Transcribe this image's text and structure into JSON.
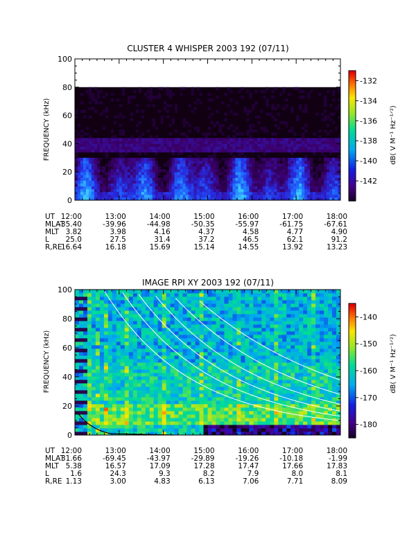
{
  "chart_data": [
    {
      "type": "heatmap",
      "title": "CLUSTER 4 WHISPER 2003 192 (07/11)",
      "ylabel": "FREQUENCY (kHz)",
      "ylim": [
        0,
        100
      ],
      "y_ticks": [
        "0",
        "20",
        "40",
        "60",
        "80",
        "100"
      ],
      "x_ticks": [
        "12:00",
        "13:00",
        "14:00",
        "15:00",
        "16:00",
        "17:00",
        "18:00"
      ],
      "colorbar": {
        "label": "dB( V M⁻¹ Hz⁻¹ᐟ²)",
        "range": [
          -144,
          -131
        ],
        "ticks": [
          "-132",
          "-134",
          "-136",
          "-138",
          "-140",
          "-142"
        ]
      },
      "data_top_khz": 80,
      "ephemeris": {
        "rows": [
          {
            "label": "UT",
            "values": [
              "12:00",
              "13:00",
              "14:00",
              "15:00",
              "16:00",
              "17:00",
              "18:00"
            ]
          },
          {
            "label": "MLAT",
            "values": [
              "-35.40",
              "-39.96",
              "-44.98",
              "-50.35",
              "-55.97",
              "-61.75",
              "-67.61"
            ]
          },
          {
            "label": "MLT",
            "values": [
              "3.82",
              "3.98",
              "4.16",
              "4.37",
              "4.58",
              "4.77",
              "4.90"
            ]
          },
          {
            "label": "L",
            "values": [
              "25.0",
              "27.5",
              "31.4",
              "37.2",
              "46.5",
              "62.1",
              "91.2"
            ]
          },
          {
            "label": "R,RE",
            "values": [
              "16.64",
              "16.18",
              "15.69",
              "15.14",
              "14.55",
              "13.92",
              "13.23"
            ]
          }
        ]
      }
    },
    {
      "type": "heatmap",
      "title": "IMAGE RPI XY 2003 192 (07/11)",
      "ylabel": "FREQUENCY (kHz)",
      "ylim": [
        0,
        100
      ],
      "y_ticks": [
        "0",
        "20",
        "40",
        "60",
        "80",
        "100"
      ],
      "x_ticks": [
        "12:00",
        "13:00",
        "14:00",
        "15:00",
        "16:00",
        "17:00",
        "18:00"
      ],
      "colorbar": {
        "label": "dB( V M⁻¹ Hz⁻¹ᐟ²)",
        "range": [
          -185,
          -135
        ],
        "ticks": [
          "-140",
          "-150",
          "-160",
          "-170",
          "-180"
        ]
      },
      "ephemeris": {
        "rows": [
          {
            "label": "UT",
            "values": [
              "12:00",
              "13:00",
              "14:00",
              "15:00",
              "16:00",
              "17:00",
              "18:00"
            ]
          },
          {
            "label": "MLAT",
            "values": [
              "31.66",
              "-69.45",
              "-43.97",
              "-29.89",
              "-19.26",
              "-10.18",
              "-1.99"
            ]
          },
          {
            "label": "MLT",
            "values": [
              "5.38",
              "16.57",
              "17.09",
              "17.28",
              "17.47",
              "17.66",
              "17.83"
            ]
          },
          {
            "label": "L",
            "values": [
              "1.6",
              "24.3",
              "9.3",
              "8.2",
              "7.9",
              "8.0",
              "8.1"
            ]
          },
          {
            "label": "R,RE",
            "values": [
              "1.13",
              "3.00",
              "4.83",
              "6.13",
              "7.06",
              "7.71",
              "8.09"
            ]
          }
        ]
      }
    }
  ]
}
